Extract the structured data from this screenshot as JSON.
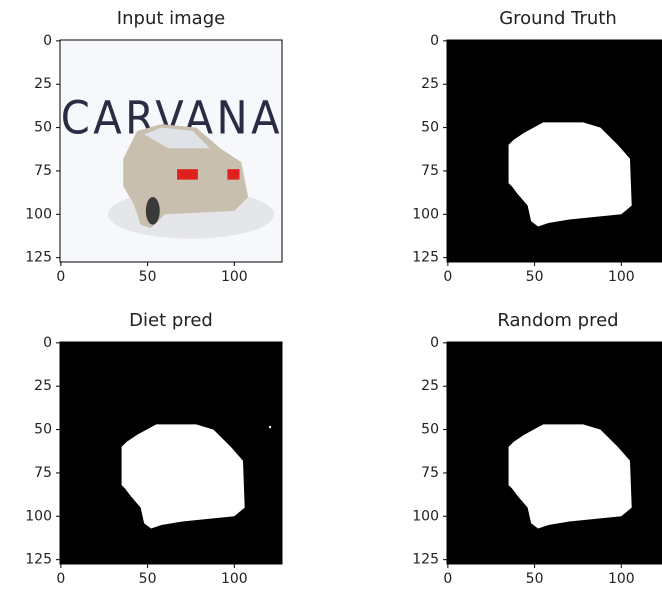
{
  "chart_data": [
    {
      "type": "image",
      "title": "Input image",
      "image_text": "CARVANA",
      "xlim": [
        -0.5,
        127.5
      ],
      "ylim": [
        127.5,
        -0.5
      ],
      "xticks": [
        0,
        50,
        100
      ],
      "yticks": [
        0,
        25,
        50,
        75,
        100,
        125
      ]
    },
    {
      "type": "image",
      "title": "Ground Truth",
      "xlim": [
        -0.5,
        127.5
      ],
      "ylim": [
        127.5,
        -0.5
      ],
      "xticks": [
        0,
        50,
        100
      ],
      "yticks": [
        0,
        25,
        50,
        75,
        100,
        125
      ]
    },
    {
      "type": "image",
      "title": "Diet pred",
      "xlim": [
        -0.5,
        127.5
      ],
      "ylim": [
        127.5,
        -0.5
      ],
      "xticks": [
        0,
        50,
        100
      ],
      "yticks": [
        0,
        25,
        50,
        75,
        100,
        125
      ]
    },
    {
      "type": "image",
      "title": "Random pred",
      "xlim": [
        -0.5,
        127.5
      ],
      "ylim": [
        127.5,
        -0.5
      ],
      "xticks": [
        0,
        50,
        100
      ],
      "yticks": [
        0,
        25,
        50,
        75,
        100,
        125
      ]
    }
  ]
}
